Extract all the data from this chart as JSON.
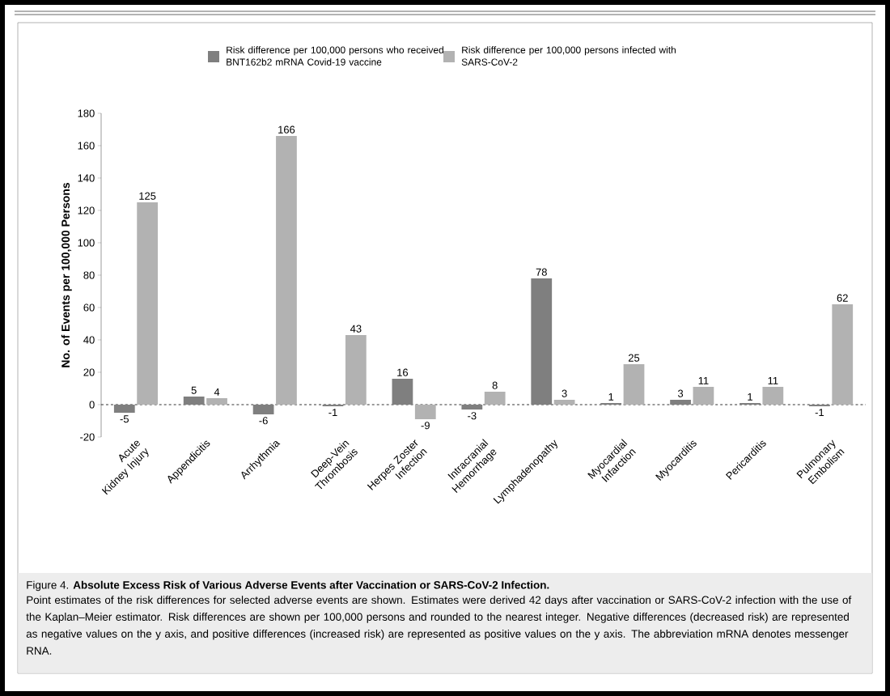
{
  "chart_data": {
    "type": "bar",
    "title": "Figure 4. **Absolute Excess Risk of Various Adverse Events after Vaccination or SARS-CoV-2 Infection.**",
    "ylabel": "No. of Events per 100,000 Persons",
    "categories": [
      "Acute Kidney Injury",
      "Appendicitis",
      "Arrhythmia",
      "Deep-Vein Thrombosis",
      "Herpes Zoster Infection",
      "Intracranial Hemorrhage",
      "Lymphadenopathy",
      "Myocardial Infarction",
      "Myocarditis",
      "Pericarditis",
      "Pulmonary Embolism"
    ],
    "series": [
      {
        "name": "Risk difference per 100,000 persons who received BNT162b2 mRNA Covid-19 vaccine",
        "color": "#7f7f7f",
        "values": [
          -5,
          5,
          -6,
          -1,
          16,
          -3,
          78,
          1,
          3,
          1,
          -1
        ]
      },
      {
        "name": "Risk difference per 100,000 persons infected with SARS-CoV-2",
        "color": "#b2b2b2",
        "values": [
          125,
          4,
          166,
          43,
          -9,
          8,
          3,
          25,
          11,
          11,
          62
        ]
      }
    ],
    "ylim": [
      -20,
      180
    ],
    "yticks": [
      -20,
      0,
      20,
      40,
      60,
      80,
      100,
      120,
      140,
      160,
      180
    ],
    "data_labels": true,
    "legend": "top",
    "grid": false,
    "ref_lines": [
      {
        "axis": "y",
        "value": 0,
        "line_style": "dashed",
        "color": "#000000"
      }
    ],
    "annotations": [
      "Point estimates of the risk differences for selected adverse events are shown. Estimates were derived 42 days after vaccination or SARS-CoV-2 infection with the use of the Kaplan–Meier estimator. Risk differences are shown per 100,000 persons and rounded to the nearest integer. Negative differences (decreased risk) are represented as negative values on the y axis, and positive differences (increased risk) are represented as positive values on the y axis. The abbreviation mRNA denotes messenger RNA."
    ]
  }
}
